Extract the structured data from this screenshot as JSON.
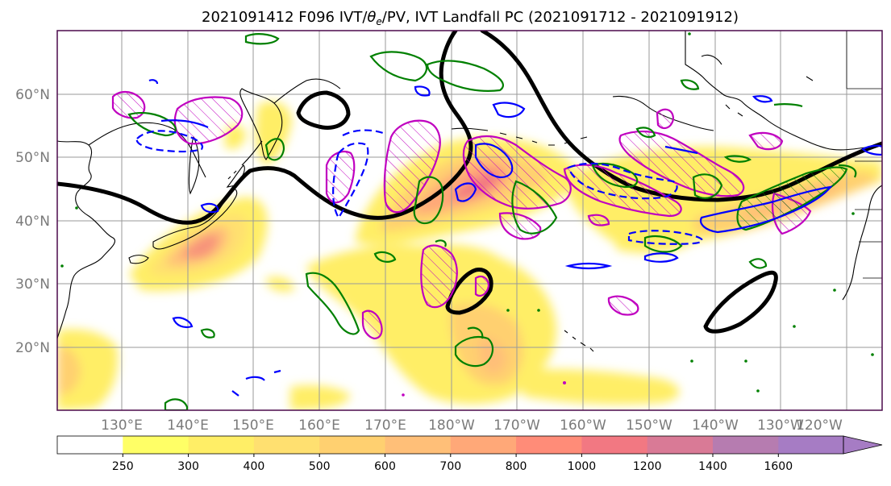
{
  "figure": {
    "title_prefix": "2021091412 F096 IVT/",
    "title_theta": "θ",
    "title_sub": "e",
    "title_suffix": "/PV, IVT Landfall PC (2021091712 - 2021091912)"
  },
  "map": {
    "projection": "cylindrical",
    "lon_range": [
      120,
      245
    ],
    "lat_range": [
      10,
      70
    ],
    "grid": true,
    "lat_ticks": [
      {
        "value": 20,
        "label": "20°N"
      },
      {
        "value": 30,
        "label": "30°N"
      },
      {
        "value": 40,
        "label": "40°N"
      },
      {
        "value": 50,
        "label": "50°N"
      },
      {
        "value": 60,
        "label": "60°N"
      }
    ],
    "lon_ticks": [
      {
        "value": 130,
        "label": "130°E"
      },
      {
        "value": 140,
        "label": "140°E"
      },
      {
        "value": 150,
        "label": "150°E"
      },
      {
        "value": 160,
        "label": "160°E"
      },
      {
        "value": 170,
        "label": "170°E"
      },
      {
        "value": 180,
        "label": "180°W"
      },
      {
        "value": 190,
        "label": "170°W"
      },
      {
        "value": 200,
        "label": "160°W"
      },
      {
        "value": 210,
        "label": "150°W"
      },
      {
        "value": 220,
        "label": "140°W"
      },
      {
        "value": 230,
        "label": "130°W"
      },
      {
        "value": 240,
        "label": "120°W"
      }
    ],
    "colors": {
      "pv_contour": "#000000",
      "green_contour": "#008000",
      "blue_contour": "#0000ff",
      "magenta_contour": "#c000c0",
      "land_outline": "#000000",
      "frame": "#4b0a4b"
    }
  },
  "colorbar": {
    "levels": [
      250,
      300,
      400,
      500,
      600,
      700,
      800,
      1000,
      1200,
      1400,
      1600
    ],
    "labels": [
      "250",
      "300",
      "400",
      "500",
      "600",
      "700",
      "800",
      "1000",
      "1200",
      "1400",
      "1600"
    ],
    "colors": [
      "#ffffff",
      "#ffff66",
      "#ffee66",
      "#ffe070",
      "#ffd070",
      "#ffbf78",
      "#ffa878",
      "#ff8c78",
      "#f27882",
      "#d97a96",
      "#b67cb0",
      "#a67cc4"
    ],
    "extend": "max"
  }
}
